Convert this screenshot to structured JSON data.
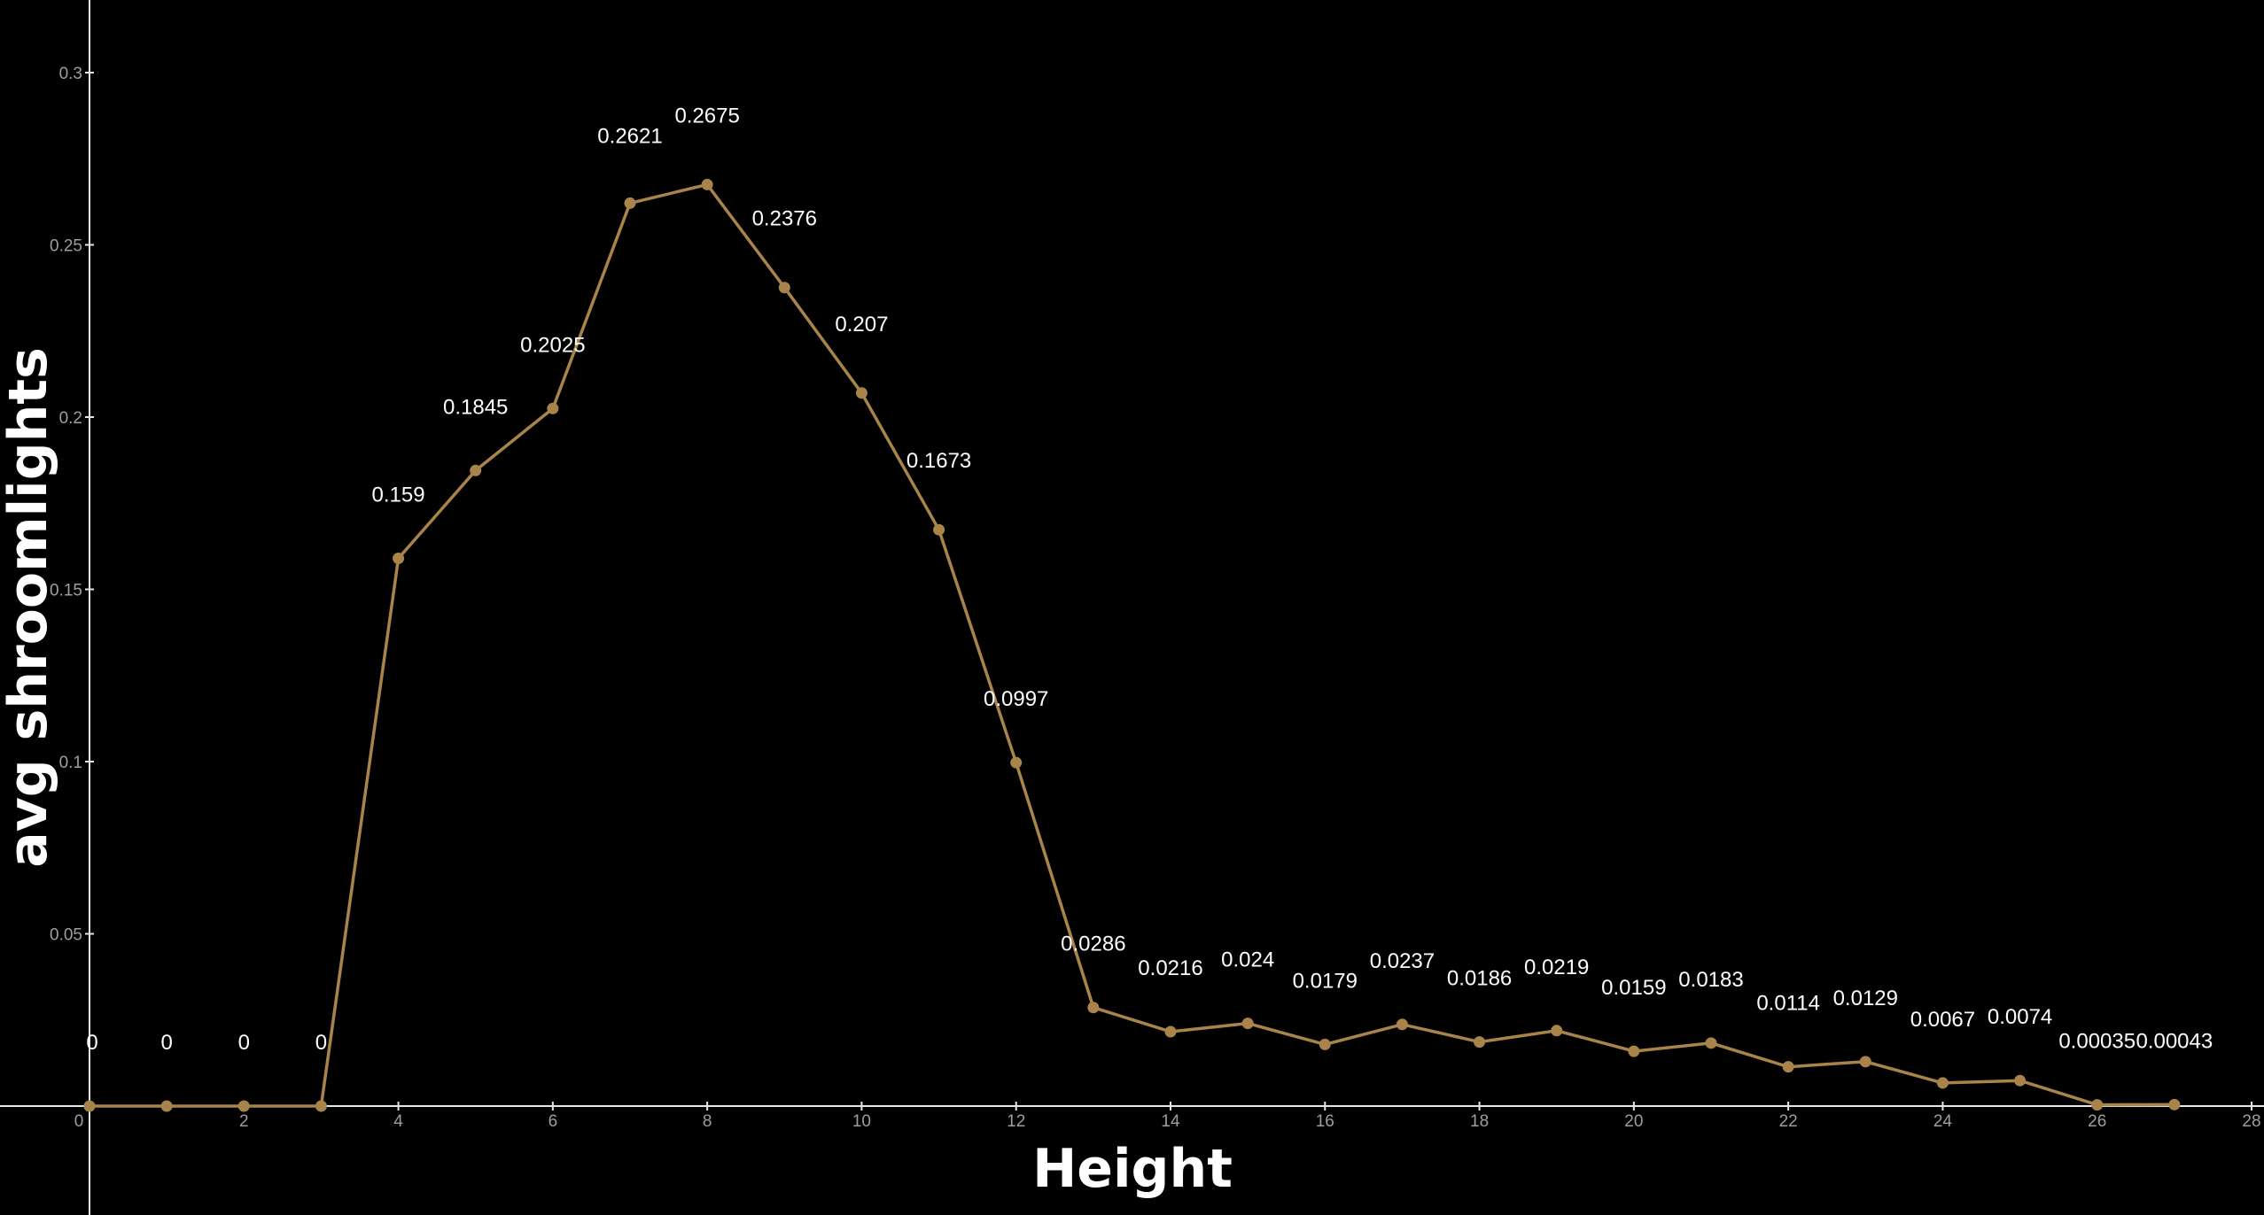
{
  "chart_data": {
    "type": "line",
    "title": "",
    "xlabel": "Height",
    "ylabel": "avg shroomlights",
    "xlim": [
      0,
      28
    ],
    "ylim": [
      0,
      0.3
    ],
    "x_ticks": [
      0,
      2,
      4,
      6,
      8,
      10,
      12,
      14,
      16,
      18,
      20,
      22,
      24,
      26,
      28
    ],
    "y_ticks": [
      0.05,
      0.1,
      0.15,
      0.2,
      0.25,
      0.3
    ],
    "x_tick_labels": [
      "0",
      "2",
      "4",
      "6",
      "8",
      "10",
      "12",
      "14",
      "16",
      "18",
      "20",
      "22",
      "24",
      "26",
      "28"
    ],
    "y_tick_labels": [
      "0.05",
      "0.1",
      "0.15",
      "0.2",
      "0.25",
      "0.3"
    ],
    "grid": false,
    "series": [
      {
        "x": [
          0,
          1,
          2,
          3,
          4,
          5,
          6,
          7,
          8,
          9,
          10,
          11,
          12,
          13,
          14,
          15,
          16,
          17,
          18,
          19,
          20,
          21,
          22,
          23,
          24,
          25,
          26,
          27
        ],
        "values": [
          0,
          0,
          0,
          0,
          0.159,
          0.1845,
          0.2025,
          0.2621,
          0.2675,
          0.2376,
          0.207,
          0.1673,
          0.0997,
          0.0286,
          0.0216,
          0.024,
          0.0179,
          0.0237,
          0.0186,
          0.0219,
          0.0159,
          0.0183,
          0.0114,
          0.0129,
          0.0067,
          0.0074,
          0.00035,
          0.00043
        ],
        "labels": [
          "0",
          "0",
          "0",
          "0",
          "0.159",
          "0.1845",
          "0.2025",
          "0.2621",
          "0.2675",
          "0.2376",
          "0.207",
          "0.1673",
          "0.0997",
          "0.0286",
          "0.0216",
          "0.024",
          "0.0179",
          "0.0237",
          "0.0186",
          "0.0219",
          "0.0159",
          "0.0183",
          "0.0114",
          "0.0129",
          "0.0067",
          "0.0074",
          "0.00035",
          "0.00043"
        ]
      }
    ],
    "colors": {
      "background": "#000000",
      "line": "#a8844a",
      "marker": "#a8844a",
      "axis": "#e6e6e6",
      "tick_text": "#9e9e9e",
      "label_text": "#ffffff",
      "title_text": "#ffffff"
    }
  }
}
